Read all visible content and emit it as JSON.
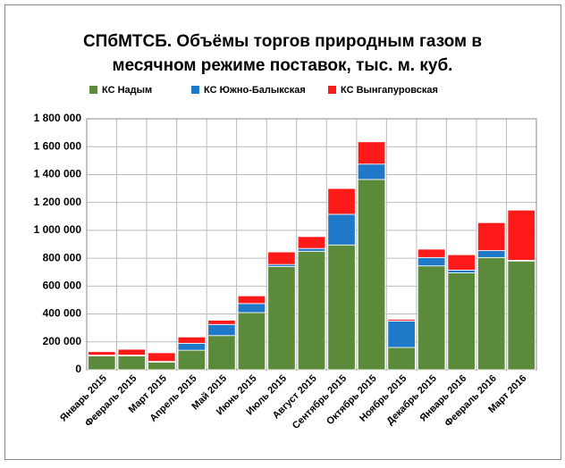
{
  "chart_data": {
    "type": "stacked_bar",
    "title_lines": [
      "СПбМТСБ. Объёмы торгов природным газом в",
      "месячном режиме поставок, тыс. м. куб."
    ],
    "categories": [
      "Январь 2015",
      "Февраль 2015",
      "Март 2015",
      "Апрель 2015",
      "Май 2015",
      "Июнь 2015",
      "Июль 2015",
      "Август 2015",
      "Сентябрь 2015",
      "Октябрь 2015",
      "Ноябрь 2015",
      "Декабрь 2015",
      "Январь 2016",
      "Февраль 2016",
      "Март 2016"
    ],
    "series": [
      {
        "name": "КС Надым",
        "color": "#5b8a3a",
        "values": [
          100000,
          100000,
          55000,
          140000,
          245000,
          410000,
          740000,
          850000,
          895000,
          1365000,
          160000,
          745000,
          695000,
          805000,
          780000
        ]
      },
      {
        "name": "КС Южно-Балыкская",
        "color": "#1f78c8",
        "values": [
          5000,
          5000,
          5000,
          50000,
          80000,
          65000,
          15000,
          20000,
          220000,
          110000,
          190000,
          60000,
          20000,
          50000,
          5000
        ]
      },
      {
        "name": "КС Вынгапуровская",
        "color": "#ff1a1a",
        "values": [
          25000,
          42000,
          62000,
          45000,
          30000,
          55000,
          90000,
          85000,
          185000,
          160000,
          12000,
          60000,
          110000,
          200000,
          360000
        ]
      }
    ],
    "ylim": [
      0,
      1800000
    ],
    "yticks": [
      0,
      {
        "value": 200000,
        "label": "200 000"
      },
      {
        "value": 400000,
        "label": "400 000"
      },
      {
        "value": 600000,
        "label": "600 000"
      },
      {
        "value": 800000,
        "label": "800 000"
      },
      {
        "value": 1000000,
        "label": "1 000 000"
      },
      {
        "value": 1200000,
        "label": "1 200 000"
      },
      {
        "value": 1400000,
        "label": "1 400 000"
      },
      {
        "value": 1600000,
        "label": "1 600 000"
      },
      {
        "value": 1800000,
        "label": "1 800 000"
      }
    ],
    "grid": true,
    "legend": "top"
  }
}
